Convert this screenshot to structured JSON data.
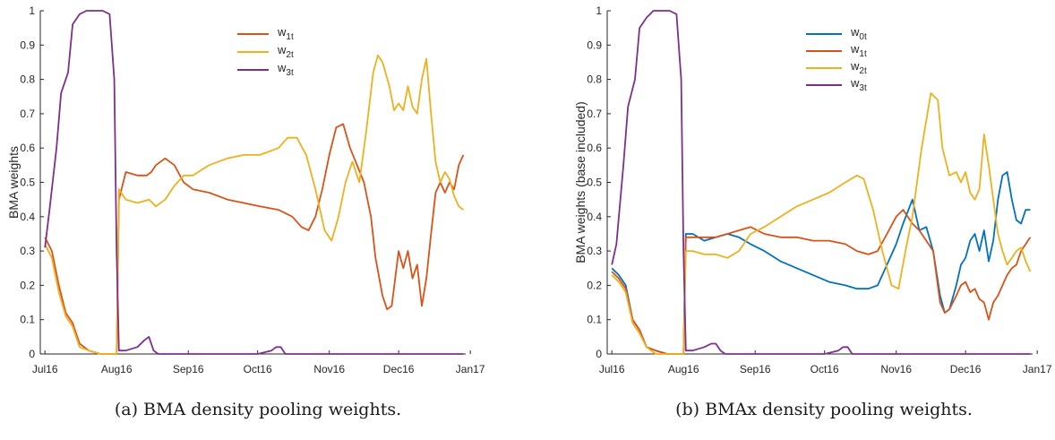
{
  "chart_data": [
    {
      "type": "line",
      "caption": "(a) BMA density pooling weights.",
      "ylabel": "BMA weights",
      "ylim": [
        0,
        1
      ],
      "yticks": [
        "0",
        "0.1",
        "0.2",
        "0.3",
        "0.4",
        "0.5",
        "0.6",
        "0.7",
        "0.8",
        "0.9",
        "1"
      ],
      "x_range": [
        "2016-06-29",
        "2016-12-30"
      ],
      "xticks": [
        {
          "label": "Jul16",
          "date": "2016-07-01"
        },
        {
          "label": "Aug16",
          "date": "2016-08-01"
        },
        {
          "label": "Sep16",
          "date": "2016-09-01"
        },
        {
          "label": "Oct16",
          "date": "2016-10-01"
        },
        {
          "label": "Nov16",
          "date": "2016-11-01"
        },
        {
          "label": "Dec16",
          "date": "2016-12-01"
        },
        {
          "label": "Jan17",
          "date": "2017-01-01"
        }
      ],
      "legend_position": "top-center",
      "series": [
        {
          "name": "w",
          "sub": "1t",
          "color": "#d95319",
          "x": [
            "2016-07-01",
            "2016-07-04",
            "2016-07-07",
            "2016-07-10",
            "2016-07-13",
            "2016-07-16",
            "2016-07-20",
            "2016-07-25",
            "2016-07-31",
            "2016-08-01",
            "2016-08-02",
            "2016-08-05",
            "2016-08-10",
            "2016-08-14",
            "2016-08-16",
            "2016-08-18",
            "2016-08-22",
            "2016-08-26",
            "2016-08-30",
            "2016-09-03",
            "2016-09-10",
            "2016-09-18",
            "2016-09-25",
            "2016-10-02",
            "2016-10-10",
            "2016-10-16",
            "2016-10-20",
            "2016-10-23",
            "2016-10-26",
            "2016-10-29",
            "2016-11-01",
            "2016-11-04",
            "2016-11-07",
            "2016-11-10",
            "2016-11-13",
            "2016-11-16",
            "2016-11-19",
            "2016-11-21",
            "2016-11-24",
            "2016-11-26",
            "2016-11-28",
            "2016-12-01",
            "2016-12-03",
            "2016-12-05",
            "2016-12-07",
            "2016-12-09",
            "2016-12-11",
            "2016-12-13",
            "2016-12-15",
            "2016-12-17",
            "2016-12-19",
            "2016-12-21",
            "2016-12-23",
            "2016-12-25",
            "2016-12-27",
            "2016-12-29"
          ],
          "values": [
            0.34,
            0.3,
            0.2,
            0.12,
            0.09,
            0.03,
            0.01,
            0.0,
            0.0,
            0.0,
            0.45,
            0.53,
            0.52,
            0.52,
            0.53,
            0.55,
            0.57,
            0.55,
            0.5,
            0.48,
            0.47,
            0.45,
            0.44,
            0.43,
            0.42,
            0.4,
            0.37,
            0.36,
            0.4,
            0.48,
            0.58,
            0.66,
            0.67,
            0.6,
            0.55,
            0.5,
            0.4,
            0.28,
            0.17,
            0.13,
            0.14,
            0.3,
            0.25,
            0.3,
            0.22,
            0.26,
            0.14,
            0.22,
            0.35,
            0.47,
            0.5,
            0.47,
            0.5,
            0.48,
            0.55,
            0.58
          ]
        },
        {
          "name": "w",
          "sub": "2t",
          "color": "#edb120",
          "x": [
            "2016-07-01",
            "2016-07-04",
            "2016-07-07",
            "2016-07-10",
            "2016-07-13",
            "2016-07-16",
            "2016-07-20",
            "2016-07-25",
            "2016-07-31",
            "2016-08-01",
            "2016-08-02",
            "2016-08-05",
            "2016-08-10",
            "2016-08-15",
            "2016-08-18",
            "2016-08-22",
            "2016-08-26",
            "2016-08-30",
            "2016-09-03",
            "2016-09-10",
            "2016-09-18",
            "2016-09-25",
            "2016-10-02",
            "2016-10-10",
            "2016-10-14",
            "2016-10-18",
            "2016-10-22",
            "2016-10-26",
            "2016-10-30",
            "2016-11-02",
            "2016-11-05",
            "2016-11-08",
            "2016-11-11",
            "2016-11-14",
            "2016-11-17",
            "2016-11-20",
            "2016-11-22",
            "2016-11-24",
            "2016-11-27",
            "2016-11-29",
            "2016-12-01",
            "2016-12-03",
            "2016-12-05",
            "2016-12-07",
            "2016-12-09",
            "2016-12-11",
            "2016-12-13",
            "2016-12-15",
            "2016-12-17",
            "2016-12-19",
            "2016-12-21",
            "2016-12-23",
            "2016-12-25",
            "2016-12-27",
            "2016-12-29"
          ],
          "values": [
            0.32,
            0.28,
            0.18,
            0.11,
            0.08,
            0.02,
            0.01,
            0.0,
            0.0,
            0.0,
            0.48,
            0.45,
            0.44,
            0.45,
            0.43,
            0.45,
            0.49,
            0.52,
            0.52,
            0.55,
            0.57,
            0.58,
            0.58,
            0.6,
            0.63,
            0.63,
            0.58,
            0.48,
            0.36,
            0.33,
            0.4,
            0.5,
            0.56,
            0.5,
            0.65,
            0.82,
            0.87,
            0.85,
            0.78,
            0.71,
            0.73,
            0.71,
            0.78,
            0.72,
            0.7,
            0.8,
            0.86,
            0.7,
            0.56,
            0.5,
            0.53,
            0.51,
            0.46,
            0.43,
            0.42
          ]
        },
        {
          "name": "w",
          "sub": "3t",
          "color": "#7e2f8e",
          "x": [
            "2016-07-01",
            "2016-07-03",
            "2016-07-06",
            "2016-07-08",
            "2016-07-11",
            "2016-07-13",
            "2016-07-16",
            "2016-07-19",
            "2016-07-22",
            "2016-07-26",
            "2016-07-29",
            "2016-07-31",
            "2016-08-01",
            "2016-08-02",
            "2016-08-05",
            "2016-08-10",
            "2016-08-13",
            "2016-08-15",
            "2016-08-17",
            "2016-08-19",
            "2016-08-22",
            "2016-09-01",
            "2016-10-01",
            "2016-10-07",
            "2016-10-09",
            "2016-10-11",
            "2016-10-12",
            "2016-10-13",
            "2016-10-20",
            "2016-11-01",
            "2016-12-01",
            "2016-12-29"
          ],
          "values": [
            0.31,
            0.42,
            0.6,
            0.76,
            0.82,
            0.96,
            0.99,
            1.0,
            1.0,
            1.0,
            0.99,
            0.8,
            0.3,
            0.01,
            0.01,
            0.02,
            0.04,
            0.05,
            0.01,
            0.0,
            0.0,
            0.0,
            0.0,
            0.01,
            0.02,
            0.02,
            0.01,
            0.0,
            0.0,
            0.0,
            0.0,
            0.0
          ]
        }
      ]
    },
    {
      "type": "line",
      "caption": "(b) BMAx density pooling weights.",
      "ylabel": "BMA weights (base included)",
      "ylim": [
        0,
        1
      ],
      "yticks": [
        "0",
        "0.1",
        "0.2",
        "0.3",
        "0.4",
        "0.5",
        "0.6",
        "0.7",
        "0.8",
        "0.9",
        "1"
      ],
      "x_range": [
        "2016-06-29",
        "2016-12-30"
      ],
      "xticks": [
        {
          "label": "Jul16",
          "date": "2016-07-01"
        },
        {
          "label": "Aug16",
          "date": "2016-08-01"
        },
        {
          "label": "Sep16",
          "date": "2016-09-01"
        },
        {
          "label": "Oct16",
          "date": "2016-10-01"
        },
        {
          "label": "Nov16",
          "date": "2016-11-01"
        },
        {
          "label": "Dec16",
          "date": "2016-12-01"
        },
        {
          "label": "Jan17",
          "date": "2017-01-01"
        }
      ],
      "legend_position": "top-center",
      "series": [
        {
          "name": "w",
          "sub": "0t",
          "color": "#0072bd",
          "x": [
            "2016-07-01",
            "2016-07-04",
            "2016-07-07",
            "2016-07-10",
            "2016-07-13",
            "2016-07-16",
            "2016-07-20",
            "2016-07-25",
            "2016-07-31",
            "2016-08-01",
            "2016-08-02",
            "2016-08-05",
            "2016-08-10",
            "2016-08-15",
            "2016-08-20",
            "2016-08-25",
            "2016-08-30",
            "2016-09-05",
            "2016-09-12",
            "2016-09-19",
            "2016-09-26",
            "2016-10-03",
            "2016-10-10",
            "2016-10-15",
            "2016-10-20",
            "2016-10-24",
            "2016-10-28",
            "2016-11-01",
            "2016-11-04",
            "2016-11-08",
            "2016-11-11",
            "2016-11-14",
            "2016-11-17",
            "2016-11-20",
            "2016-11-22",
            "2016-11-24",
            "2016-11-27",
            "2016-11-29",
            "2016-12-01",
            "2016-12-03",
            "2016-12-05",
            "2016-12-07",
            "2016-12-09",
            "2016-12-11",
            "2016-12-13",
            "2016-12-15",
            "2016-12-17",
            "2016-12-19",
            "2016-12-21",
            "2016-12-23",
            "2016-12-25",
            "2016-12-27",
            "2016-12-29"
          ],
          "values": [
            0.25,
            0.23,
            0.2,
            0.1,
            0.07,
            0.02,
            0.01,
            0.0,
            0.0,
            0.0,
            0.35,
            0.35,
            0.33,
            0.34,
            0.35,
            0.34,
            0.32,
            0.3,
            0.27,
            0.25,
            0.23,
            0.21,
            0.2,
            0.19,
            0.19,
            0.2,
            0.26,
            0.32,
            0.38,
            0.45,
            0.36,
            0.37,
            0.3,
            0.17,
            0.12,
            0.13,
            0.2,
            0.26,
            0.28,
            0.33,
            0.35,
            0.3,
            0.36,
            0.27,
            0.33,
            0.45,
            0.52,
            0.53,
            0.45,
            0.39,
            0.38,
            0.42,
            0.42
          ]
        },
        {
          "name": "w",
          "sub": "1t",
          "color": "#d95319",
          "x": [
            "2016-07-01",
            "2016-07-04",
            "2016-07-07",
            "2016-07-10",
            "2016-07-13",
            "2016-07-16",
            "2016-07-20",
            "2016-07-25",
            "2016-07-31",
            "2016-08-01",
            "2016-08-02",
            "2016-08-05",
            "2016-08-10",
            "2016-08-15",
            "2016-08-20",
            "2016-08-25",
            "2016-08-30",
            "2016-09-05",
            "2016-09-12",
            "2016-09-19",
            "2016-09-26",
            "2016-10-03",
            "2016-10-10",
            "2016-10-15",
            "2016-10-20",
            "2016-10-24",
            "2016-10-28",
            "2016-11-01",
            "2016-11-04",
            "2016-11-08",
            "2016-11-11",
            "2016-11-14",
            "2016-11-17",
            "2016-11-20",
            "2016-11-22",
            "2016-11-24",
            "2016-11-27",
            "2016-11-29",
            "2016-12-01",
            "2016-12-03",
            "2016-12-05",
            "2016-12-07",
            "2016-12-09",
            "2016-12-11",
            "2016-12-13",
            "2016-12-15",
            "2016-12-17",
            "2016-12-19",
            "2016-12-21",
            "2016-12-23",
            "2016-12-25",
            "2016-12-27",
            "2016-12-29"
          ],
          "values": [
            0.24,
            0.22,
            0.19,
            0.1,
            0.07,
            0.02,
            0.01,
            0.0,
            0.0,
            0.0,
            0.34,
            0.34,
            0.34,
            0.34,
            0.35,
            0.36,
            0.37,
            0.35,
            0.34,
            0.34,
            0.33,
            0.33,
            0.32,
            0.3,
            0.29,
            0.3,
            0.35,
            0.4,
            0.42,
            0.38,
            0.36,
            0.33,
            0.3,
            0.15,
            0.12,
            0.13,
            0.17,
            0.2,
            0.21,
            0.18,
            0.19,
            0.16,
            0.15,
            0.1,
            0.15,
            0.17,
            0.2,
            0.23,
            0.25,
            0.26,
            0.3,
            0.32,
            0.34
          ]
        },
        {
          "name": "w",
          "sub": "2t",
          "color": "#edb120",
          "x": [
            "2016-07-01",
            "2016-07-04",
            "2016-07-07",
            "2016-07-10",
            "2016-07-13",
            "2016-07-16",
            "2016-07-20",
            "2016-07-25",
            "2016-07-31",
            "2016-08-01",
            "2016-08-02",
            "2016-08-05",
            "2016-08-10",
            "2016-08-15",
            "2016-08-20",
            "2016-08-25",
            "2016-08-30",
            "2016-09-05",
            "2016-09-12",
            "2016-09-19",
            "2016-09-26",
            "2016-10-03",
            "2016-10-10",
            "2016-10-15",
            "2016-10-18",
            "2016-10-22",
            "2016-10-26",
            "2016-10-30",
            "2016-11-02",
            "2016-11-05",
            "2016-11-08",
            "2016-11-12",
            "2016-11-16",
            "2016-11-19",
            "2016-11-21",
            "2016-11-24",
            "2016-11-27",
            "2016-11-29",
            "2016-12-01",
            "2016-12-03",
            "2016-12-05",
            "2016-12-07",
            "2016-12-09",
            "2016-12-11",
            "2016-12-13",
            "2016-12-15",
            "2016-12-17",
            "2016-12-19",
            "2016-12-21",
            "2016-12-23",
            "2016-12-25",
            "2016-12-27",
            "2016-12-29"
          ],
          "values": [
            0.23,
            0.21,
            0.18,
            0.09,
            0.06,
            0.02,
            0.0,
            0.0,
            0.0,
            0.0,
            0.3,
            0.3,
            0.29,
            0.29,
            0.28,
            0.3,
            0.35,
            0.37,
            0.4,
            0.43,
            0.45,
            0.47,
            0.5,
            0.52,
            0.51,
            0.42,
            0.3,
            0.2,
            0.19,
            0.3,
            0.4,
            0.6,
            0.76,
            0.74,
            0.6,
            0.52,
            0.53,
            0.5,
            0.53,
            0.47,
            0.45,
            0.48,
            0.64,
            0.55,
            0.45,
            0.35,
            0.3,
            0.26,
            0.28,
            0.3,
            0.31,
            0.27,
            0.24
          ]
        },
        {
          "name": "w",
          "sub": "3t",
          "color": "#7e2f8e",
          "x": [
            "2016-07-01",
            "2016-07-03",
            "2016-07-06",
            "2016-07-08",
            "2016-07-11",
            "2016-07-13",
            "2016-07-16",
            "2016-07-19",
            "2016-07-22",
            "2016-07-26",
            "2016-07-29",
            "2016-07-31",
            "2016-08-01",
            "2016-08-02",
            "2016-08-05",
            "2016-08-10",
            "2016-08-13",
            "2016-08-15",
            "2016-08-17",
            "2016-08-19",
            "2016-08-22",
            "2016-09-01",
            "2016-10-01",
            "2016-10-07",
            "2016-10-09",
            "2016-10-11",
            "2016-10-12",
            "2016-10-13",
            "2016-10-20",
            "2016-11-01",
            "2016-12-01",
            "2016-12-29"
          ],
          "values": [
            0.26,
            0.32,
            0.55,
            0.72,
            0.8,
            0.95,
            0.98,
            1.0,
            1.0,
            1.0,
            0.99,
            0.8,
            0.3,
            0.01,
            0.01,
            0.02,
            0.03,
            0.03,
            0.01,
            0.0,
            0.0,
            0.0,
            0.0,
            0.01,
            0.02,
            0.02,
            0.01,
            0.0,
            0.0,
            0.0,
            0.0,
            0.0
          ]
        }
      ]
    }
  ]
}
